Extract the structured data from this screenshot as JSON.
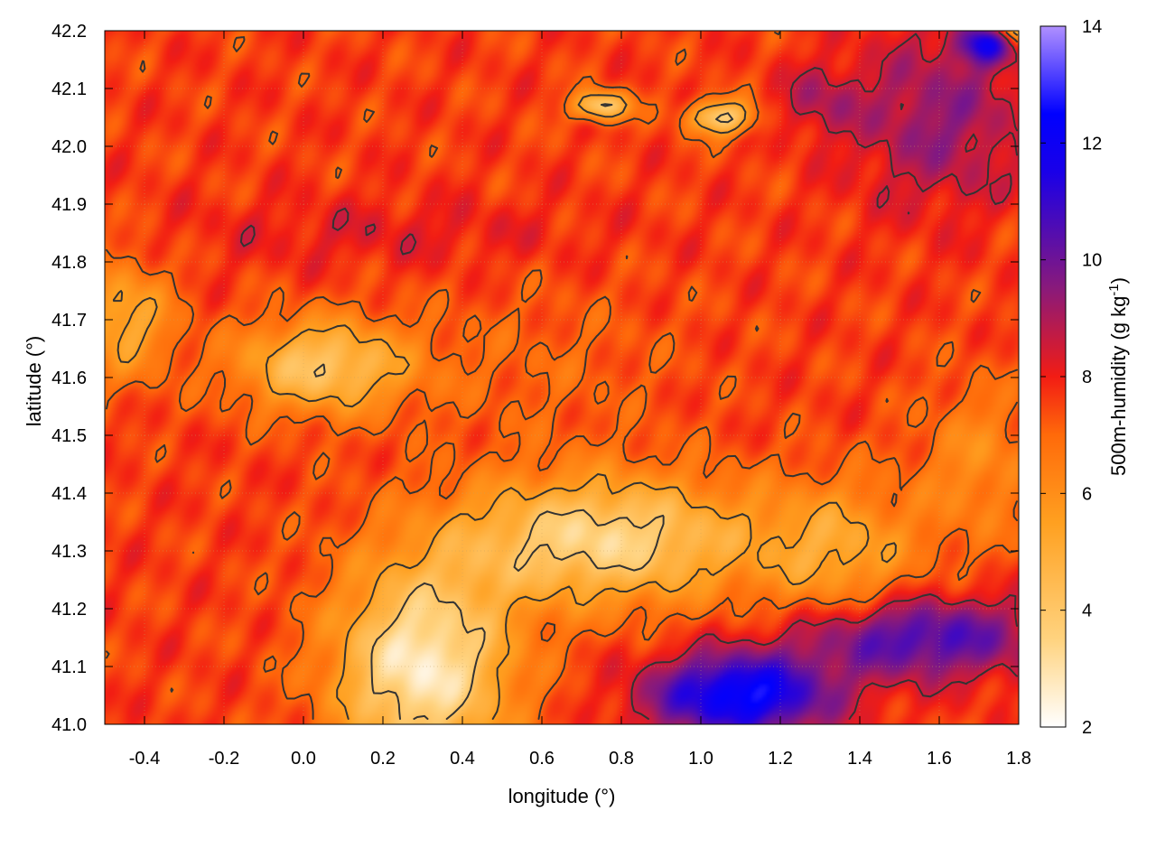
{
  "chart_data": {
    "type": "heatmap",
    "title": "",
    "xlabel": "longitude (°)",
    "ylabel": "latitude (°)",
    "colorbar_label": "500m-humidity (g kg",
    "colorbar_label_sup": "-1",
    "colorbar_label_end": ")",
    "xlim": [
      -0.5,
      1.8
    ],
    "ylim": [
      41.0,
      42.2
    ],
    "clim": [
      2,
      14
    ],
    "x_ticks": [
      -0.4,
      -0.2,
      0.0,
      0.2,
      0.4,
      0.6,
      0.8,
      1.0,
      1.2,
      1.4,
      1.6,
      1.8
    ],
    "x_tick_labels": [
      "-0.4",
      "-0.2",
      "0.0",
      "0.2",
      "0.4",
      "0.6",
      "0.8",
      "1.0",
      "1.2",
      "1.4",
      "1.6",
      "1.8"
    ],
    "y_ticks": [
      41.0,
      41.1,
      41.2,
      41.3,
      41.4,
      41.5,
      41.6,
      41.7,
      41.8,
      41.9,
      42.0,
      42.1,
      42.2
    ],
    "y_tick_labels": [
      "41.0",
      "41.1",
      "41.2",
      "41.3",
      "41.4",
      "41.5",
      "41.6",
      "41.7",
      "41.8",
      "41.9",
      "42.0",
      "42.1",
      "42.2"
    ],
    "c_ticks": [
      2,
      4,
      6,
      8,
      10,
      12,
      14
    ],
    "c_tick_labels": [
      "2",
      "4",
      "6",
      "8",
      "10",
      "12",
      "14"
    ],
    "colormap": [
      "#ffffff",
      "#ffd37f",
      "#ffa020",
      "#ff6a0a",
      "#f21c14",
      "#8a1a7a",
      "#1a00e8",
      "#0000ff",
      "#b090ff"
    ],
    "grid": true,
    "contour_color": "#333333"
  }
}
